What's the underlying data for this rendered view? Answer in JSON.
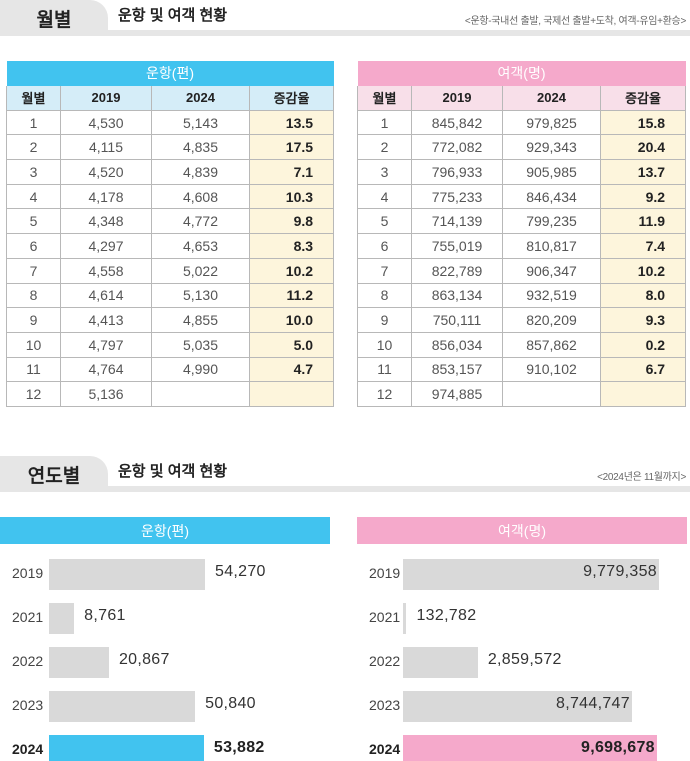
{
  "monthly": {
    "tab": "월별",
    "title": "운항 및 여객 현황",
    "note": "<운항-국내선 출발, 국제선 출발+도착, 여객-유임+환승>",
    "flights": {
      "header": "운항(편)",
      "columns": [
        "월별",
        "2019",
        "2024",
        "증감율"
      ],
      "rows": [
        [
          "1",
          "4,530",
          "5,143",
          "13.5"
        ],
        [
          "2",
          "4,115",
          "4,835",
          "17.5"
        ],
        [
          "3",
          "4,520",
          "4,839",
          "7.1"
        ],
        [
          "4",
          "4,178",
          "4,608",
          "10.3"
        ],
        [
          "5",
          "4,348",
          "4,772",
          "9.8"
        ],
        [
          "6",
          "4,297",
          "4,653",
          "8.3"
        ],
        [
          "7",
          "4,558",
          "5,022",
          "10.2"
        ],
        [
          "8",
          "4,614",
          "5,130",
          "11.2"
        ],
        [
          "9",
          "4,413",
          "4,855",
          "10.0"
        ],
        [
          "10",
          "4,797",
          "5,035",
          "5.0"
        ],
        [
          "11",
          "4,764",
          "4,990",
          "4.7"
        ],
        [
          "12",
          "5,136",
          "",
          ""
        ]
      ]
    },
    "passengers": {
      "header": "여객(명)",
      "columns": [
        "월별",
        "2019",
        "2024",
        "증감율"
      ],
      "rows": [
        [
          "1",
          "845,842",
          "979,825",
          "15.8"
        ],
        [
          "2",
          "772,082",
          "929,343",
          "20.4"
        ],
        [
          "3",
          "796,933",
          "905,985",
          "13.7"
        ],
        [
          "4",
          "775,233",
          "846,434",
          "9.2"
        ],
        [
          "5",
          "714,139",
          "799,235",
          "11.9"
        ],
        [
          "6",
          "755,019",
          "810,817",
          "7.4"
        ],
        [
          "7",
          "822,789",
          "906,347",
          "10.2"
        ],
        [
          "8",
          "863,134",
          "932,519",
          "8.0"
        ],
        [
          "9",
          "750,111",
          "820,209",
          "9.3"
        ],
        [
          "10",
          "856,034",
          "857,862",
          "0.2"
        ],
        [
          "11",
          "853,157",
          "910,102",
          "6.7"
        ],
        [
          "12",
          "974,885",
          "",
          ""
        ]
      ]
    }
  },
  "yearly": {
    "tab": "연도별",
    "title": "운항 및 여객 현황",
    "note": "<2024년은 11월까지>",
    "flights": {
      "header": "운항(편)",
      "rows": [
        {
          "year": "2019",
          "value": 54270,
          "label": "54,270"
        },
        {
          "year": "2021",
          "value": 8761,
          "label": "8,761"
        },
        {
          "year": "2022",
          "value": 20867,
          "label": "20,867"
        },
        {
          "year": "2023",
          "value": 50840,
          "label": "50,840"
        },
        {
          "year": "2024",
          "value": 53882,
          "label": "53,882",
          "current": true
        }
      ]
    },
    "passengers": {
      "header": "여객(명)",
      "rows": [
        {
          "year": "2019",
          "value": 9779358,
          "label": "9,779,358"
        },
        {
          "year": "2021",
          "value": 132782,
          "label": "132,782"
        },
        {
          "year": "2022",
          "value": 2859572,
          "label": "2,859,572"
        },
        {
          "year": "2023",
          "value": 8744747,
          "label": "8,744,747"
        },
        {
          "year": "2024",
          "value": 9698678,
          "label": "9,698,678",
          "current": true
        }
      ]
    }
  },
  "colors": {
    "flights_accent": "#41c3ef",
    "passengers_accent": "#f5a9cb",
    "bar_gray": "#d9d9d9",
    "pct_bg": "#fdf5dc"
  }
}
